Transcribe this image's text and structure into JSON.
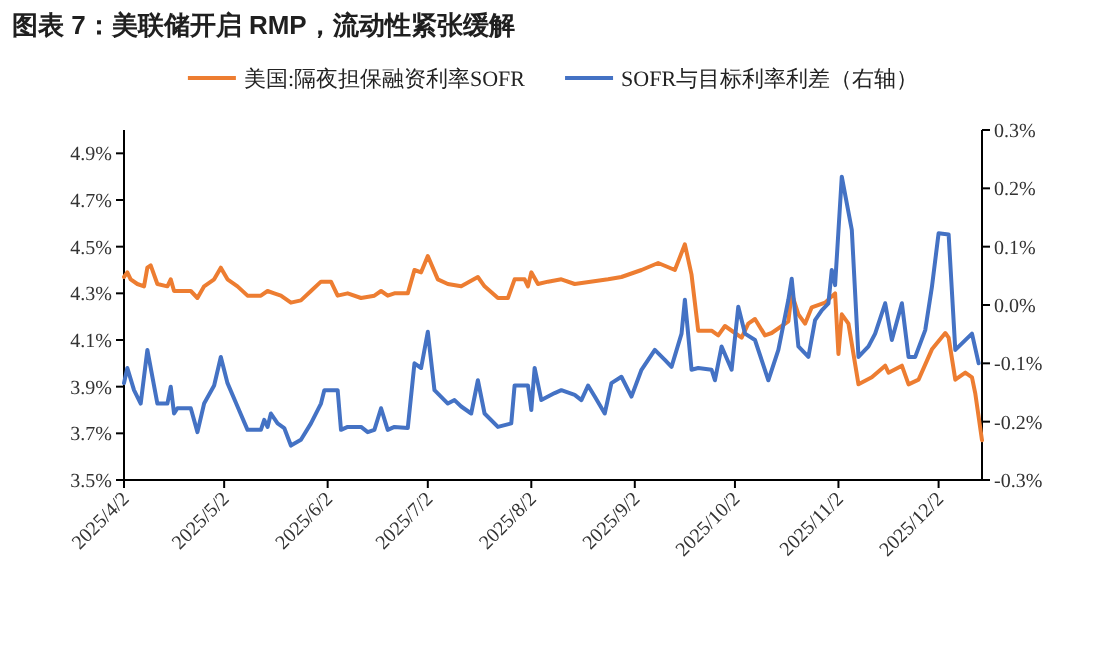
{
  "chart_data": {
    "type": "line",
    "title": "图表 7：美联储开启 RMP，流动性紧张缓解",
    "legend": "top",
    "line_style": "solid",
    "marker": "none",
    "grid": false,
    "xlim": [
      "2025-04-02",
      "2025-12-15"
    ],
    "xticks": [
      {
        "value": "2025-04-02",
        "label": "2025/4/2"
      },
      {
        "value": "2025-05-02",
        "label": "2025/5/2"
      },
      {
        "value": "2025-06-02",
        "label": "2025/6/2"
      },
      {
        "value": "2025-07-02",
        "label": "2025/7/2"
      },
      {
        "value": "2025-08-02",
        "label": "2025/8/2"
      },
      {
        "value": "2025-09-02",
        "label": "2025/9/2"
      },
      {
        "value": "2025-10-02",
        "label": "2025/10/2"
      },
      {
        "value": "2025-11-02",
        "label": "2025/11/2"
      },
      {
        "value": "2025-12-02",
        "label": "2025/12/2"
      }
    ],
    "ylim": [
      3.5,
      5.0
    ],
    "yticks": [
      {
        "value": 3.5,
        "label": "3.5%"
      },
      {
        "value": 3.7,
        "label": "3.7%"
      },
      {
        "value": 3.9,
        "label": "3.9%"
      },
      {
        "value": 4.1,
        "label": "4.1%"
      },
      {
        "value": 4.3,
        "label": "4.3%"
      },
      {
        "value": 4.5,
        "label": "4.5%"
      },
      {
        "value": 4.7,
        "label": "4.7%"
      },
      {
        "value": 4.9,
        "label": "4.9%"
      }
    ],
    "y2lim": [
      -0.3,
      0.3
    ],
    "y2ticks": [
      {
        "value": -0.3,
        "label": "-0.3%"
      },
      {
        "value": -0.2,
        "label": "-0.2%"
      },
      {
        "value": -0.1,
        "label": "-0.1%"
      },
      {
        "value": 0,
        "label": "0.0%"
      },
      {
        "value": 0.1,
        "label": "0.1%"
      },
      {
        "value": 0.2,
        "label": "0.2%"
      },
      {
        "value": 0.3,
        "label": "0.3%"
      }
    ],
    "series": [
      {
        "name": "美国:隔夜担保融资利率SOFR",
        "color": "#ed7d31",
        "x": [
          "2025-04-02",
          "2025-04-03",
          "2025-04-04",
          "2025-04-06",
          "2025-04-08",
          "2025-04-09",
          "2025-04-10",
          "2025-04-12",
          "2025-04-15",
          "2025-04-16",
          "2025-04-17",
          "2025-04-22",
          "2025-04-24",
          "2025-04-26",
          "2025-04-29",
          "2025-05-01",
          "2025-05-03",
          "2025-05-06",
          "2025-05-09",
          "2025-05-13",
          "2025-05-15",
          "2025-05-17",
          "2025-05-19",
          "2025-05-22",
          "2025-05-25",
          "2025-05-28",
          "2025-05-31",
          "2025-06-03",
          "2025-06-05",
          "2025-06-08",
          "2025-06-12",
          "2025-06-16",
          "2025-06-18",
          "2025-06-20",
          "2025-06-22",
          "2025-06-26",
          "2025-06-28",
          "2025-06-30",
          "2025-07-02",
          "2025-07-05",
          "2025-07-08",
          "2025-07-12",
          "2025-07-17",
          "2025-07-19",
          "2025-07-23",
          "2025-07-26",
          "2025-07-28",
          "2025-07-31",
          "2025-08-01",
          "2025-08-02",
          "2025-08-04",
          "2025-08-07",
          "2025-08-11",
          "2025-08-15",
          "2025-08-25",
          "2025-08-29",
          "2025-09-04",
          "2025-09-09",
          "2025-09-14",
          "2025-09-17",
          "2025-09-19",
          "2025-09-21",
          "2025-09-25",
          "2025-09-27",
          "2025-09-29",
          "2025-10-02",
          "2025-10-04",
          "2025-10-06",
          "2025-10-08",
          "2025-10-11",
          "2025-10-13",
          "2025-10-18",
          "2025-10-19",
          "2025-10-21",
          "2025-10-23",
          "2025-10-25",
          "2025-10-29",
          "2025-11-01",
          "2025-11-02",
          "2025-11-03",
          "2025-11-05",
          "2025-11-08",
          "2025-11-12",
          "2025-11-16",
          "2025-11-17",
          "2025-11-21",
          "2025-11-23",
          "2025-11-26",
          "2025-11-30",
          "2025-12-04",
          "2025-12-05",
          "2025-12-07",
          "2025-12-10",
          "2025-12-12",
          "2025-12-13",
          "2025-12-15"
        ],
        "values": [
          4.37,
          4.39,
          4.36,
          4.34,
          4.33,
          4.41,
          4.42,
          4.34,
          4.33,
          4.36,
          4.31,
          4.31,
          4.28,
          4.33,
          4.36,
          4.41,
          4.36,
          4.33,
          4.29,
          4.29,
          4.31,
          4.3,
          4.29,
          4.26,
          4.27,
          4.31,
          4.35,
          4.35,
          4.29,
          4.3,
          4.28,
          4.29,
          4.31,
          4.29,
          4.3,
          4.3,
          4.4,
          4.39,
          4.46,
          4.36,
          4.34,
          4.33,
          4.37,
          4.33,
          4.28,
          4.28,
          4.36,
          4.36,
          4.33,
          4.39,
          4.34,
          4.35,
          4.36,
          4.34,
          4.36,
          4.37,
          4.4,
          4.43,
          4.4,
          4.51,
          4.38,
          4.14,
          4.14,
          4.12,
          4.16,
          4.13,
          4.11,
          4.17,
          4.19,
          4.12,
          4.13,
          4.18,
          4.3,
          4.21,
          4.17,
          4.24,
          4.26,
          4.3,
          4.04,
          4.21,
          4.17,
          3.91,
          3.94,
          3.99,
          3.96,
          3.99,
          3.91,
          3.93,
          4.06,
          4.13,
          4.11,
          3.93,
          3.96,
          3.94,
          3.87,
          3.67
        ]
      },
      {
        "name": "SOFR与目标利率利差（右轴）",
        "color": "#4472c4",
        "axis": "y2",
        "x": [
          "2025-04-02",
          "2025-04-03",
          "2025-04-05",
          "2025-04-07",
          "2025-04-09",
          "2025-04-12",
          "2025-04-15",
          "2025-04-16",
          "2025-04-17",
          "2025-04-18",
          "2025-04-22",
          "2025-04-24",
          "2025-04-26",
          "2025-04-29",
          "2025-05-01",
          "2025-05-03",
          "2025-05-06",
          "2025-05-09",
          "2025-05-13",
          "2025-05-14",
          "2025-05-15",
          "2025-05-16",
          "2025-05-18",
          "2025-05-20",
          "2025-05-22",
          "2025-05-25",
          "2025-05-28",
          "2025-05-31",
          "2025-06-01",
          "2025-06-05",
          "2025-06-06",
          "2025-06-08",
          "2025-06-12",
          "2025-06-14",
          "2025-06-16",
          "2025-06-18",
          "2025-06-20",
          "2025-06-22",
          "2025-06-26",
          "2025-06-28",
          "2025-06-30",
          "2025-07-02",
          "2025-07-04",
          "2025-07-08",
          "2025-07-10",
          "2025-07-12",
          "2025-07-15",
          "2025-07-17",
          "2025-07-19",
          "2025-07-23",
          "2025-07-27",
          "2025-07-28",
          "2025-08-01",
          "2025-08-02",
          "2025-08-03",
          "2025-08-05",
          "2025-08-09",
          "2025-08-11",
          "2025-08-15",
          "2025-08-17",
          "2025-08-19",
          "2025-08-21",
          "2025-08-24",
          "2025-08-26",
          "2025-08-29",
          "2025-09-01",
          "2025-09-04",
          "2025-09-08",
          "2025-09-11",
          "2025-09-13",
          "2025-09-16",
          "2025-09-17",
          "2025-09-19",
          "2025-09-21",
          "2025-09-25",
          "2025-09-26",
          "2025-09-28",
          "2025-10-01",
          "2025-10-03",
          "2025-10-05",
          "2025-10-08",
          "2025-10-12",
          "2025-10-15",
          "2025-10-18",
          "2025-10-19",
          "2025-10-21",
          "2025-10-24",
          "2025-10-26",
          "2025-10-28",
          "2025-10-30",
          "2025-10-31",
          "2025-11-01",
          "2025-11-03",
          "2025-11-06",
          "2025-11-08",
          "2025-11-11",
          "2025-11-13",
          "2025-11-16",
          "2025-11-18",
          "2025-11-21",
          "2025-11-23",
          "2025-11-25",
          "2025-11-28",
          "2025-11-30",
          "2025-12-02",
          "2025-12-05",
          "2025-12-07",
          "2025-12-12",
          "2025-12-14"
        ],
        "values": [
          -0.134,
          -0.108,
          -0.146,
          -0.169,
          -0.077,
          -0.169,
          -0.169,
          -0.14,
          -0.186,
          -0.177,
          -0.177,
          -0.218,
          -0.169,
          -0.138,
          -0.089,
          -0.134,
          -0.174,
          -0.214,
          -0.214,
          -0.197,
          -0.209,
          -0.186,
          -0.203,
          -0.211,
          -0.241,
          -0.231,
          -0.203,
          -0.169,
          -0.146,
          -0.146,
          -0.214,
          -0.209,
          -0.209,
          -0.218,
          -0.214,
          -0.177,
          -0.214,
          -0.209,
          -0.211,
          -0.1,
          -0.108,
          -0.046,
          -0.146,
          -0.169,
          -0.163,
          -0.174,
          -0.186,
          -0.129,
          -0.186,
          -0.209,
          -0.203,
          -0.138,
          -0.138,
          -0.18,
          -0.108,
          -0.163,
          -0.151,
          -0.146,
          -0.154,
          -0.163,
          -0.138,
          -0.157,
          -0.186,
          -0.134,
          -0.123,
          -0.157,
          -0.111,
          -0.077,
          -0.094,
          -0.106,
          -0.049,
          0.009,
          -0.111,
          -0.108,
          -0.111,
          -0.129,
          -0.071,
          -0.111,
          -0.003,
          -0.049,
          -0.06,
          -0.129,
          -0.077,
          0.009,
          0.045,
          -0.071,
          -0.089,
          -0.026,
          -0.009,
          0.003,
          0.06,
          0.034,
          0.22,
          0.129,
          -0.089,
          -0.071,
          -0.049,
          0.003,
          -0.06,
          0.003,
          -0.089,
          -0.089,
          -0.043,
          0.031,
          0.123,
          0.121,
          -0.077,
          -0.049,
          -0.1
        ]
      }
    ]
  }
}
